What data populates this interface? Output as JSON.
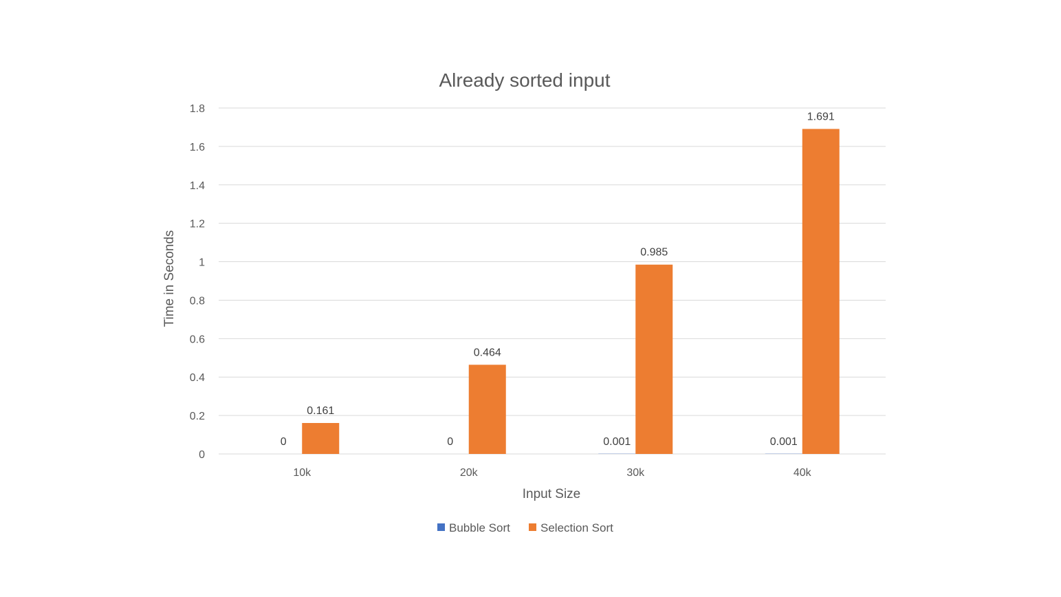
{
  "chart_data": {
    "type": "bar",
    "title": "Already sorted input",
    "xlabel": "Input Size",
    "ylabel": "Time in Seconds",
    "categories": [
      "10k",
      "20k",
      "30k",
      "40k"
    ],
    "series": [
      {
        "name": "Bubble Sort",
        "color": "#4472C4",
        "values": [
          0,
          0,
          0.001,
          0.001
        ],
        "labels": [
          "0",
          "0",
          "0.001",
          "0.001"
        ]
      },
      {
        "name": "Selection Sort",
        "color": "#ED7D31",
        "values": [
          0.161,
          0.464,
          0.985,
          1.691
        ],
        "labels": [
          "0.161",
          "0.464",
          "0.985",
          "1.691"
        ]
      }
    ],
    "ylim": [
      0,
      1.8
    ],
    "yticks": [
      0,
      0.2,
      0.4,
      0.6,
      0.8,
      1,
      1.2,
      1.4,
      1.6,
      1.8
    ],
    "ytick_labels": [
      "0",
      "0.2",
      "0.4",
      "0.6",
      "0.8",
      "1",
      "1.2",
      "1.4",
      "1.6",
      "1.8"
    ],
    "grid": true,
    "legend_position": "bottom",
    "data_labels": true
  }
}
